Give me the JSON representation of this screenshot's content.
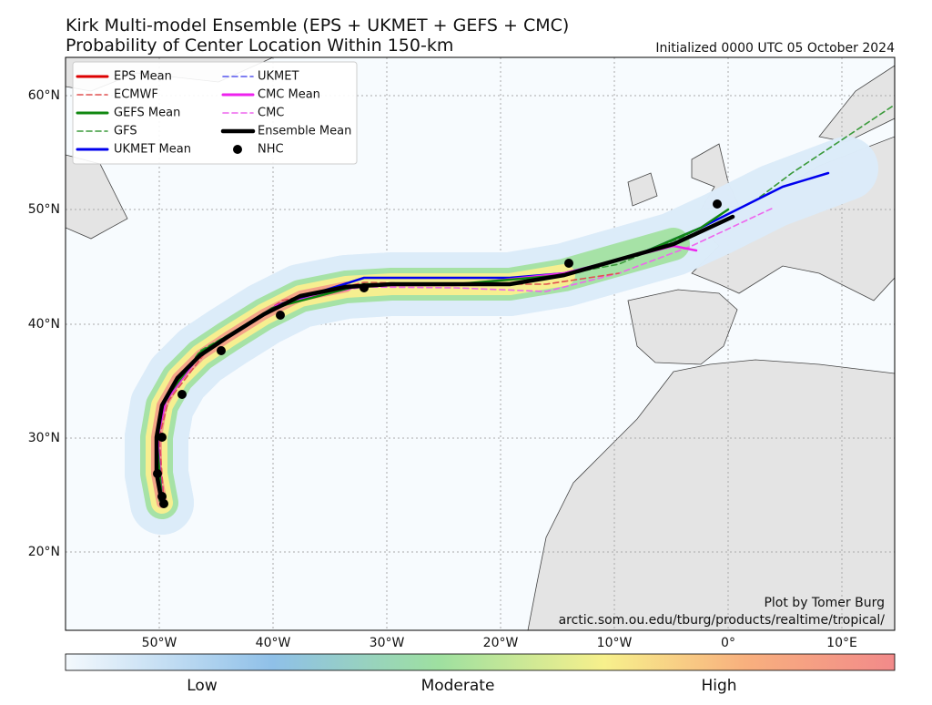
{
  "header": {
    "title": "Kirk Multi-model Ensemble (EPS + UKMET + GEFS + CMC)",
    "subtitle": "Probability of Center Location Within 150-km",
    "initialized": "Initialized 0000 UTC 05 October 2024"
  },
  "map": {
    "lat_labels": [
      "60°N",
      "50°N",
      "40°N",
      "30°N",
      "20°N"
    ],
    "lon_labels": [
      "50°W",
      "40°W",
      "30°W",
      "20°W",
      "10°W",
      "0°",
      "10°E"
    ],
    "legend": [
      "EPS Mean",
      "ECMWF",
      "GEFS Mean",
      "GFS",
      "UKMET Mean",
      "UKMET",
      "CMC Mean",
      "CMC",
      "Ensemble Mean",
      "NHC"
    ],
    "credit": [
      "Plot by Tomer Burg",
      "arctic.som.ou.edu/tburg/products/realtime/tropical/"
    ]
  },
  "colorbar": {
    "labels": [
      "Low",
      "Moderate",
      "High"
    ]
  }
}
